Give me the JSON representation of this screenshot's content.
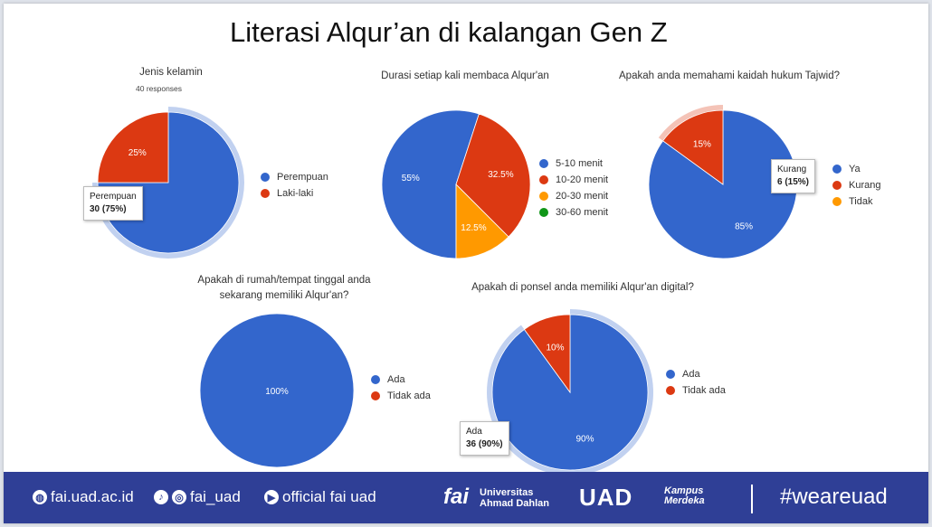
{
  "title": "Literasi Alqur’an di kalangan Gen Z",
  "colors": {
    "blue": "#3366cc",
    "red": "#dc3912",
    "orange": "#ff9900",
    "green": "#109618",
    "footer": "#2f3f96"
  },
  "chart_data": [
    {
      "type": "pie",
      "title": "Jenis kelamin",
      "subtitle": "40 responses",
      "categories": [
        "Perempuan",
        "Laki-laki"
      ],
      "values": [
        75,
        25
      ],
      "slice_labels": [
        "",
        "25%"
      ],
      "highlight": 0,
      "tooltip": {
        "label": "Perempuan",
        "value": "30 (75%)"
      }
    },
    {
      "type": "pie",
      "title": "Durasi setiap kali membaca Alqur'an",
      "categories": [
        "5-10 menit",
        "10-20 menit",
        "20-30 menit",
        "30-60 menit"
      ],
      "values": [
        55,
        32.5,
        12.5,
        0
      ],
      "slice_labels": [
        "55%",
        "32.5%",
        "12.5%",
        ""
      ]
    },
    {
      "type": "pie",
      "title": "Apakah anda memahami kaidah hukum Tajwid?",
      "categories": [
        "Ya",
        "Kurang",
        "Tidak"
      ],
      "values": [
        85,
        15,
        0
      ],
      "slice_labels": [
        "85%",
        "15%",
        ""
      ],
      "highlight": 1,
      "tooltip": {
        "label": "Kurang",
        "value": "6 (15%)"
      }
    },
    {
      "type": "pie",
      "title_lines": [
        "Apakah di rumah/tempat tinggal anda",
        "sekarang memiliki  Alqur'an?"
      ],
      "categories": [
        "Ada",
        "Tidak ada"
      ],
      "values": [
        100,
        0
      ],
      "slice_labels": [
        "100%",
        ""
      ]
    },
    {
      "type": "pie",
      "title": "Apakah di ponsel anda memiliki  Alqur'an digital?",
      "categories": [
        "Ada",
        "Tidak ada"
      ],
      "values": [
        90,
        10
      ],
      "slice_labels": [
        "90%",
        "10%"
      ],
      "highlight": 0,
      "tooltip": {
        "label": "Ada",
        "value": "36 (90%)"
      }
    }
  ],
  "footer": {
    "website": "fai.uad.ac.id",
    "social_handle": "fai_uad",
    "youtube": "official fai uad",
    "fai_logo": "fai",
    "university_line1": "Universitas",
    "university_line2": "Ahmad Dahlan",
    "uad_logo": "UAD",
    "kampus_line1": "Kampus",
    "kampus_line2": "Merdeka",
    "hashtag": "#weareuad"
  }
}
